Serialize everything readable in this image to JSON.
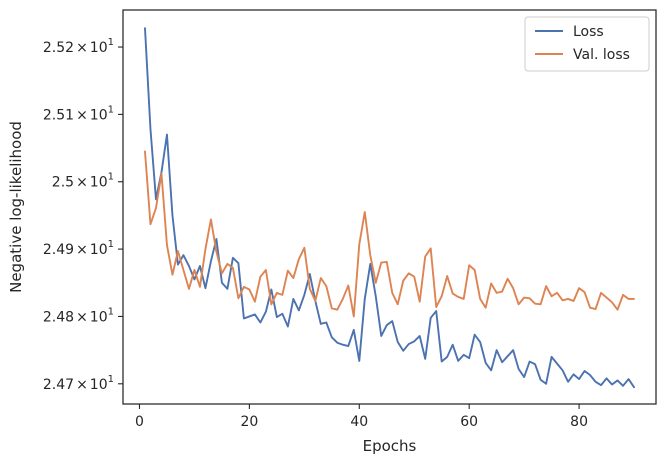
{
  "chart_data": {
    "type": "line",
    "xlabel": "Epochs",
    "ylabel": "Negative log-likelihood",
    "xlim": [
      -3,
      94
    ],
    "ylim": [
      24.67,
      25.255
    ],
    "x_ticks": [
      0,
      20,
      40,
      60,
      80
    ],
    "y_ticks": [
      {
        "value": 24.7,
        "mantissa": "2.47",
        "exponent": "1"
      },
      {
        "value": 24.8,
        "mantissa": "2.48",
        "exponent": "1"
      },
      {
        "value": 24.9,
        "mantissa": "2.49",
        "exponent": "1"
      },
      {
        "value": 25.0,
        "mantissa": "2.5",
        "exponent": "1"
      },
      {
        "value": 25.1,
        "mantissa": "2.51",
        "exponent": "1"
      },
      {
        "value": 25.2,
        "mantissa": "2.52",
        "exponent": "1"
      }
    ],
    "times_symbol": "×",
    "base": "10",
    "grid": false,
    "legend_position": "top-right",
    "series": [
      {
        "name": "Loss",
        "color": "#4c72b0",
        "x": [
          1,
          2,
          3,
          4,
          5,
          6,
          7,
          8,
          9,
          10,
          11,
          12,
          13,
          14,
          15,
          16,
          17,
          18,
          19,
          20,
          21,
          22,
          23,
          24,
          25,
          26,
          27,
          28,
          29,
          30,
          31,
          32,
          33,
          34,
          35,
          36,
          37,
          38,
          39,
          40,
          41,
          42,
          43,
          44,
          45,
          46,
          47,
          48,
          49,
          50,
          51,
          52,
          53,
          54,
          55,
          56,
          57,
          58,
          59,
          60,
          61,
          62,
          63,
          64,
          65,
          66,
          67,
          68,
          69,
          70,
          71,
          72,
          73,
          74,
          75,
          76,
          77,
          78,
          79,
          80,
          81,
          82,
          83,
          84,
          85,
          86,
          87,
          88,
          89,
          90
        ],
        "y": [
          25.228,
          25.078,
          24.974,
          25.014,
          25.07,
          24.95,
          24.877,
          24.891,
          24.875,
          24.855,
          24.875,
          24.842,
          24.882,
          24.915,
          24.85,
          24.841,
          24.887,
          24.879,
          24.797,
          24.8,
          24.803,
          24.791,
          24.807,
          24.84,
          24.799,
          24.804,
          24.785,
          24.826,
          24.809,
          24.832,
          24.863,
          24.823,
          24.789,
          24.791,
          24.769,
          24.761,
          24.758,
          24.756,
          24.78,
          24.734,
          24.826,
          24.878,
          24.83,
          24.771,
          24.787,
          24.793,
          24.762,
          24.749,
          24.759,
          24.763,
          24.771,
          24.737,
          24.798,
          24.808,
          24.733,
          24.74,
          24.758,
          24.734,
          24.743,
          24.738,
          24.773,
          24.762,
          24.731,
          24.72,
          24.75,
          24.732,
          24.741,
          24.75,
          24.722,
          24.71,
          24.733,
          24.729,
          24.706,
          24.7,
          24.74,
          24.73,
          24.72,
          24.703,
          24.714,
          24.707,
          24.719,
          24.713,
          24.703,
          24.698,
          24.708,
          24.699,
          24.705,
          24.697,
          24.707,
          24.695
        ]
      },
      {
        "name": "Val. loss",
        "color": "#dd8452",
        "x": [
          1,
          2,
          3,
          4,
          5,
          6,
          7,
          8,
          9,
          10,
          11,
          12,
          13,
          14,
          15,
          16,
          17,
          18,
          19,
          20,
          21,
          22,
          23,
          24,
          25,
          26,
          27,
          28,
          29,
          30,
          31,
          32,
          33,
          34,
          35,
          36,
          37,
          38,
          39,
          40,
          41,
          42,
          43,
          44,
          45,
          46,
          47,
          48,
          49,
          50,
          51,
          52,
          53,
          54,
          55,
          56,
          57,
          58,
          59,
          60,
          61,
          62,
          63,
          64,
          65,
          66,
          67,
          68,
          69,
          70,
          71,
          72,
          73,
          74,
          75,
          76,
          77,
          78,
          79,
          80,
          81,
          82,
          83,
          84,
          85,
          86,
          87,
          88,
          89,
          90
        ],
        "y": [
          25.045,
          24.937,
          24.961,
          25.012,
          24.906,
          24.862,
          24.897,
          24.869,
          24.841,
          24.869,
          24.844,
          24.9,
          24.944,
          24.896,
          24.864,
          24.878,
          24.872,
          24.827,
          24.844,
          24.84,
          24.822,
          24.859,
          24.869,
          24.818,
          24.835,
          24.832,
          24.868,
          24.857,
          24.885,
          24.902,
          24.841,
          24.823,
          24.857,
          24.845,
          24.812,
          24.81,
          24.826,
          24.846,
          24.8,
          24.907,
          24.955,
          24.891,
          24.85,
          24.88,
          24.881,
          24.835,
          24.818,
          24.853,
          24.864,
          24.859,
          24.822,
          24.889,
          24.901,
          24.814,
          24.83,
          24.86,
          24.834,
          24.829,
          24.826,
          24.876,
          24.869,
          24.826,
          24.813,
          24.849,
          24.835,
          24.837,
          24.856,
          24.842,
          24.818,
          24.828,
          24.827,
          24.819,
          24.818,
          24.845,
          24.83,
          24.835,
          24.824,
          24.826,
          24.823,
          24.842,
          24.836,
          24.813,
          24.811,
          24.835,
          24.828,
          24.821,
          24.81,
          24.832,
          24.826,
          24.826
        ]
      }
    ]
  }
}
